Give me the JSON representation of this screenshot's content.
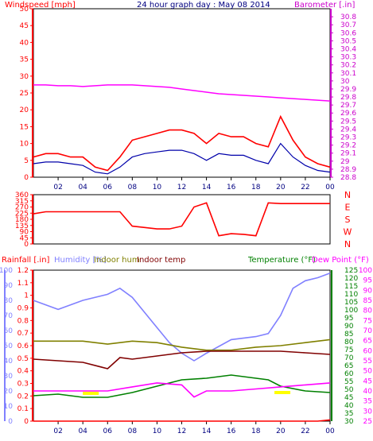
{
  "title": "24 hour graph day : May 08 2014",
  "colors": {
    "red": "#ff0000",
    "blue": "#0000aa",
    "magenta": "#ff00ff",
    "axisRed": "#ff0000",
    "axisMagenta": "#cc00cc",
    "navy": "#000080",
    "green": "#008000",
    "olive": "#808000",
    "maroon": "#800000",
    "lavender": "#8080ff",
    "yellow": "#ffff00"
  },
  "panel1": {
    "left_label": "Windspeed [mph]",
    "right_label": "Barometer [.in]"
  },
  "panel3": {
    "legend": [
      "Rainfall [.in]",
      "Humidity [%]",
      "Indoor hum",
      "Indoor temp",
      "Temperature (°F)",
      "Dew Point (°F)"
    ]
  },
  "chart_data": [
    {
      "type": "line",
      "title": "24 hour graph day : May 08 2014",
      "xlabel": "",
      "x_ticks": [
        "02",
        "04",
        "06",
        "08",
        "10",
        "12",
        "14",
        "16",
        "18",
        "20",
        "22",
        "00"
      ],
      "y_left": {
        "label": "Windspeed [mph]",
        "range": [
          0,
          50
        ],
        "ticks": [
          0,
          5,
          10,
          15,
          20,
          25,
          30,
          35,
          40,
          45,
          50
        ]
      },
      "y_right": {
        "label": "Barometer [.in]",
        "range": [
          28.8,
          30.9
        ],
        "ticks": [
          "28.8",
          "28.9",
          "29",
          "29.1",
          "29.2",
          "29.3",
          "29.4",
          "29.5",
          "29.6",
          "29.7",
          "29.8",
          "29.9",
          "30",
          "30.1",
          "30.2",
          "30.3",
          "30.4",
          "30.5",
          "30.6",
          "30.7",
          "30.8"
        ]
      },
      "series": [
        {
          "name": "Windspeed",
          "axis": "left",
          "x": [
            0,
            1,
            2,
            3,
            4,
            5,
            6,
            7,
            8,
            9,
            10,
            11,
            12,
            13,
            14,
            15,
            16,
            17,
            18,
            19,
            20,
            21,
            22,
            23,
            24
          ],
          "values": [
            6,
            7,
            7,
            6,
            6,
            3,
            2,
            6,
            11,
            12,
            13,
            14,
            14,
            13,
            10,
            13,
            12,
            12,
            10,
            9,
            18,
            11,
            6,
            4,
            3
          ]
        },
        {
          "name": "Wind average",
          "axis": "left",
          "x": [
            0,
            1,
            2,
            3,
            4,
            5,
            6,
            7,
            8,
            9,
            10,
            11,
            12,
            13,
            14,
            15,
            16,
            17,
            18,
            19,
            20,
            21,
            22,
            23,
            24
          ],
          "values": [
            4,
            4.5,
            4.5,
            4,
            3.5,
            1.5,
            1,
            3,
            6,
            7,
            7.5,
            8,
            8,
            7,
            5,
            7,
            6.5,
            6.5,
            5,
            4,
            10,
            6,
            3.5,
            2,
            1.5
          ]
        },
        {
          "name": "Barometer",
          "axis": "right",
          "x": [
            0,
            1,
            2,
            3,
            4,
            5,
            6,
            7,
            8,
            9,
            10,
            11,
            12,
            13,
            14,
            15,
            16,
            17,
            18,
            19,
            20,
            21,
            22,
            23,
            24
          ],
          "values": [
            29.95,
            29.95,
            29.94,
            29.94,
            29.93,
            29.94,
            29.95,
            29.95,
            29.95,
            29.94,
            29.93,
            29.92,
            29.9,
            29.88,
            29.86,
            29.84,
            29.83,
            29.82,
            29.81,
            29.8,
            29.79,
            29.78,
            29.77,
            29.76,
            29.75
          ]
        }
      ]
    },
    {
      "type": "line",
      "title": "",
      "x_ticks": [
        "02",
        "04",
        "06",
        "08",
        "10",
        "12",
        "14",
        "16",
        "18",
        "20",
        "22",
        "00"
      ],
      "y_left": {
        "label": "",
        "range": [
          0,
          360
        ],
        "ticks": [
          0,
          45,
          90,
          135,
          180,
          225,
          270,
          315,
          360
        ]
      },
      "y_right": {
        "label": "",
        "ticks": [
          "N",
          "W",
          "S",
          "E",
          "N"
        ]
      },
      "series": [
        {
          "name": "Wind direction",
          "x": [
            0,
            1,
            2,
            3,
            4,
            5,
            6,
            7,
            8,
            9,
            10,
            11,
            12,
            13,
            14,
            15,
            16,
            17,
            18,
            19,
            20,
            21,
            22,
            23,
            24
          ],
          "values": [
            220,
            235,
            235,
            235,
            235,
            235,
            235,
            235,
            130,
            120,
            110,
            110,
            130,
            270,
            300,
            60,
            75,
            70,
            60,
            300,
            295,
            295,
            295,
            295,
            295
          ]
        }
      ]
    },
    {
      "type": "line",
      "title": "",
      "x_ticks": [
        "02",
        "04",
        "06",
        "08",
        "10",
        "12",
        "14",
        "16",
        "18",
        "20",
        "22",
        "00"
      ],
      "y_axes": [
        {
          "label": "Rainfall [.in]",
          "ticks": [
            "0",
            "0.1",
            "0.2",
            "0.3",
            "0.4",
            "0.5",
            "0.6",
            "0.7",
            "0.8",
            "0.9",
            "1",
            "1.1",
            "1.2"
          ]
        },
        {
          "label": "Humidity [%]",
          "ticks": [
            0,
            10,
            20,
            30,
            40,
            50,
            60,
            70,
            80,
            90,
            100
          ]
        },
        {
          "label": "Temperature (°F)",
          "ticks": [
            30,
            35,
            40,
            45,
            50,
            55,
            60,
            65,
            70,
            75,
            80,
            85,
            90,
            95,
            100,
            105,
            110,
            115,
            120,
            125
          ]
        },
        {
          "label": "Dew Point (°F)",
          "ticks": [
            25,
            30,
            35,
            40,
            45,
            50,
            55,
            60,
            65,
            70,
            75,
            80,
            85,
            90,
            95,
            100
          ]
        }
      ],
      "series": [
        {
          "name": "Rainfall [.in]",
          "x": [
            0,
            12,
            23,
            24
          ],
          "values": [
            0,
            0,
            0,
            0.01
          ]
        },
        {
          "name": "Humidity [%]",
          "x": [
            0,
            2,
            4,
            6,
            7,
            8,
            10,
            11,
            12,
            13,
            14,
            16,
            18,
            19,
            20,
            21,
            22,
            23,
            24
          ],
          "values": [
            80,
            74,
            80,
            84,
            88,
            82,
            62,
            52,
            45,
            40,
            45,
            54,
            56,
            58,
            70,
            88,
            93,
            95,
            98
          ]
        },
        {
          "name": "Indoor hum",
          "x": [
            0,
            4,
            6,
            8,
            10,
            12,
            14,
            16,
            18,
            20,
            22,
            24
          ],
          "values": [
            53,
            53,
            51,
            53,
            52,
            49,
            47,
            47,
            49,
            50,
            52,
            54
          ]
        },
        {
          "name": "Indoor temp",
          "x": [
            0,
            4,
            6,
            7,
            8,
            10,
            12,
            14,
            16,
            18,
            20,
            22,
            24
          ],
          "values": [
            69,
            67,
            63,
            70,
            69,
            71,
            73,
            74,
            74,
            74,
            74,
            73,
            72
          ]
        },
        {
          "name": "Temperature (°F)",
          "x": [
            0,
            2,
            4,
            6,
            8,
            10,
            12,
            14,
            16,
            18,
            19,
            20,
            22,
            24
          ],
          "values": [
            46,
            47,
            45,
            45,
            48,
            52,
            56,
            57,
            59,
            57,
            56,
            52,
            49,
            48
          ]
        },
        {
          "name": "Dew Point (°F)",
          "x": [
            0,
            2,
            4,
            6,
            8,
            10,
            12,
            13,
            14,
            16,
            18,
            20,
            22,
            24
          ],
          "values": [
            40,
            40,
            40,
            40,
            42,
            44,
            43,
            37,
            40,
            40,
            41,
            42,
            43,
            44
          ]
        }
      ]
    }
  ]
}
